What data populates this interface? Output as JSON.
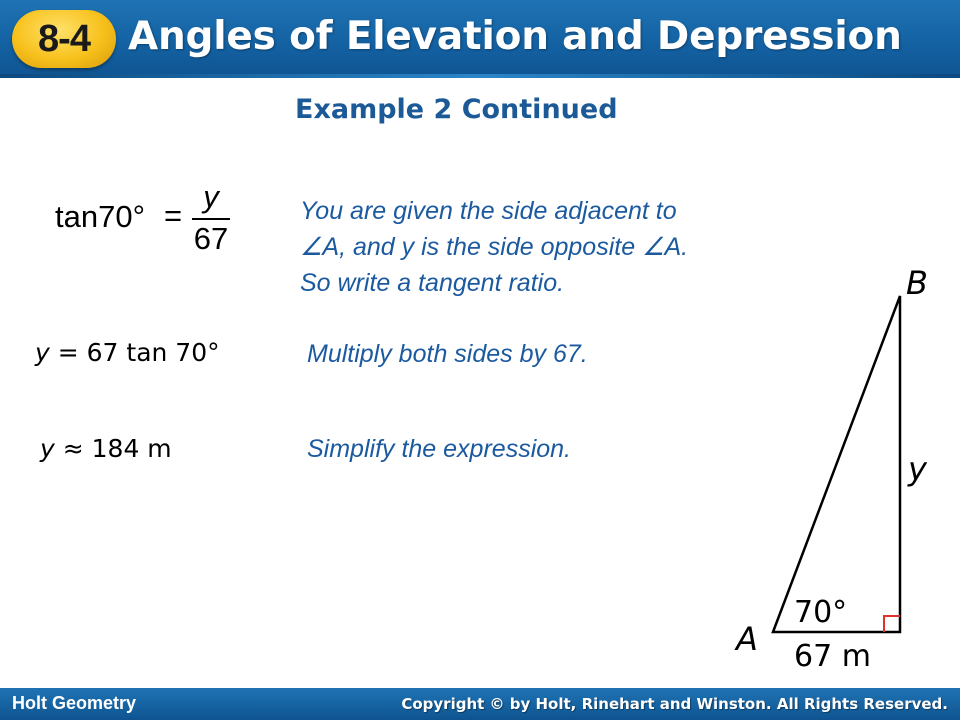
{
  "header": {
    "badge": "8-4",
    "title": "Angles of Elevation and Depression"
  },
  "subtitle": "Example 2 Continued",
  "equation1": {
    "lhs": "tan70°",
    "equals": "=",
    "numerator": "y",
    "denominator": "67"
  },
  "notes": {
    "note1_line1": "You are given the side adjacent to",
    "note1_line2": "A, and y is the side opposite",
    "note1_line2_end": "A.",
    "note1_line3": "So write a tangent ratio.",
    "note2": "Multiply both sides by 67.",
    "note3": "Simplify the expression."
  },
  "angle_symbol": "∠",
  "steps": {
    "step1_var": "y",
    "step1_rest": " = 67 tan 70°",
    "step2_var": "y",
    "step2_rest": " ≈ 184 m"
  },
  "diagram": {
    "label_B": "B",
    "label_y": "y",
    "label_A": "A",
    "angle": "70°",
    "base": "67 m"
  },
  "footer": {
    "left": "Holt Geometry",
    "right": "Copyright © by Holt, Rinehart and Winston. All Rights Reserved."
  },
  "colors": {
    "header_blue": "#1462a3",
    "badge_gold": "#f7c11c",
    "note_blue": "#1c5aa0",
    "right_angle_red": "#e0302a"
  }
}
